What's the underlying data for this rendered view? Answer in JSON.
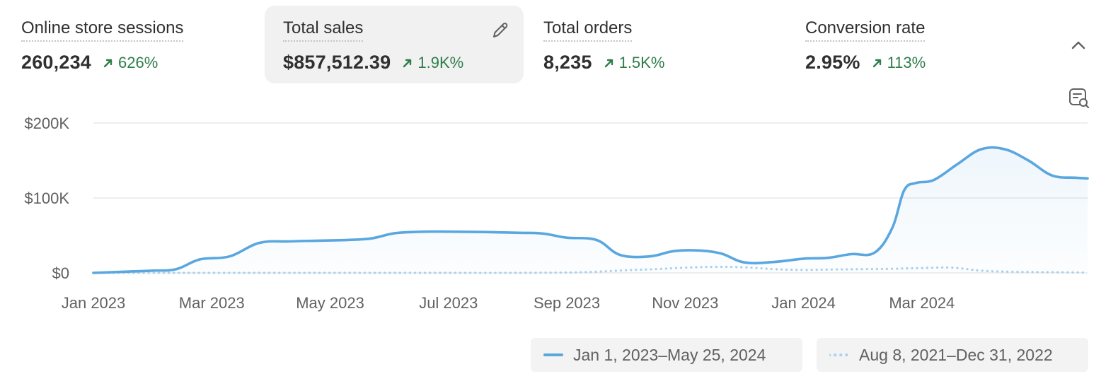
{
  "metrics": [
    {
      "label": "Online store sessions",
      "value": "260,234",
      "delta": "626%"
    },
    {
      "label": "Total sales",
      "value": "$857,512.39",
      "delta": "1.9K%",
      "active": true
    },
    {
      "label": "Total orders",
      "value": "8,235",
      "delta": "1.5K%"
    },
    {
      "label": "Conversion rate",
      "value": "2.95%",
      "delta": "113%"
    }
  ],
  "icons": {
    "edit": "pencil-icon",
    "collapse": "chevron-up-icon",
    "explore": "explore-report-icon",
    "delta": "arrow-up-right-icon"
  },
  "colors": {
    "current_series": "#5aa7e0",
    "comparison_series": "#a9d1ee",
    "positive_delta": "#2f7d4a",
    "active_card": "#f1f1f1"
  },
  "legend": {
    "current": "Jan 1, 2023–May 25, 2024",
    "comparison": "Aug 8, 2021–Dec 31, 2022"
  },
  "chart_data": {
    "type": "line",
    "title": "",
    "xlabel": "",
    "ylabel": "",
    "ylim": [
      0,
      200000
    ],
    "y_ticks": [
      {
        "value": 0,
        "label": "$0"
      },
      {
        "value": 100000,
        "label": "$100K"
      },
      {
        "value": 200000,
        "label": "$200K"
      }
    ],
    "x_range": [
      0,
      16.8
    ],
    "x_ticks": [
      {
        "value": 0,
        "label": "Jan 2023"
      },
      {
        "value": 2,
        "label": "Mar 2023"
      },
      {
        "value": 4,
        "label": "May 2023"
      },
      {
        "value": 6,
        "label": "Jul 2023"
      },
      {
        "value": 8,
        "label": "Sep 2023"
      },
      {
        "value": 10,
        "label": "Nov 2023"
      },
      {
        "value": 12,
        "label": "Jan 2024"
      },
      {
        "value": 14,
        "label": "Mar 2024"
      }
    ],
    "grid": true,
    "legend_position": "bottom-right",
    "series": [
      {
        "name": "Jan 1, 2023–May 25, 2024",
        "style": "solid",
        "x": [
          0,
          0.5,
          1.0,
          1.4,
          1.8,
          2.3,
          2.8,
          3.3,
          3.8,
          4.3,
          4.7,
          5.1,
          5.6,
          6.0,
          6.6,
          7.2,
          7.6,
          8.0,
          8.5,
          8.9,
          9.4,
          9.8,
          10.2,
          10.6,
          11.0,
          11.5,
          12.0,
          12.4,
          12.8,
          13.2,
          13.5,
          13.7,
          13.9,
          14.2,
          14.6,
          15.0,
          15.4,
          15.8,
          16.2,
          16.6,
          16.8
        ],
        "y": [
          0,
          1500,
          3000,
          5000,
          18000,
          22000,
          40000,
          42000,
          43000,
          44000,
          46000,
          53000,
          55000,
          55000,
          54500,
          53500,
          52500,
          47000,
          44000,
          24000,
          22000,
          29000,
          30000,
          26000,
          14000,
          14500,
          19000,
          20000,
          25000,
          27000,
          60000,
          110000,
          120000,
          124000,
          145000,
          165000,
          165000,
          150000,
          130000,
          127000,
          126000
        ]
      },
      {
        "name": "Aug 8, 2021–Dec 31, 2022",
        "style": "dotted",
        "x": [
          0,
          1,
          2,
          3,
          4,
          5,
          6,
          7,
          8,
          8.5,
          9.0,
          9.5,
          10.0,
          10.5,
          11.0,
          11.5,
          12.0,
          12.5,
          13.0,
          13.5,
          14.0,
          14.5,
          15.0,
          15.5,
          16.0,
          16.8
        ],
        "y": [
          0,
          0,
          0,
          0,
          0,
          0,
          0,
          0,
          500,
          1500,
          3500,
          5000,
          7000,
          8000,
          7500,
          5000,
          4000,
          4500,
          5000,
          5500,
          6500,
          7000,
          3000,
          1500,
          1000,
          500
        ]
      }
    ]
  }
}
